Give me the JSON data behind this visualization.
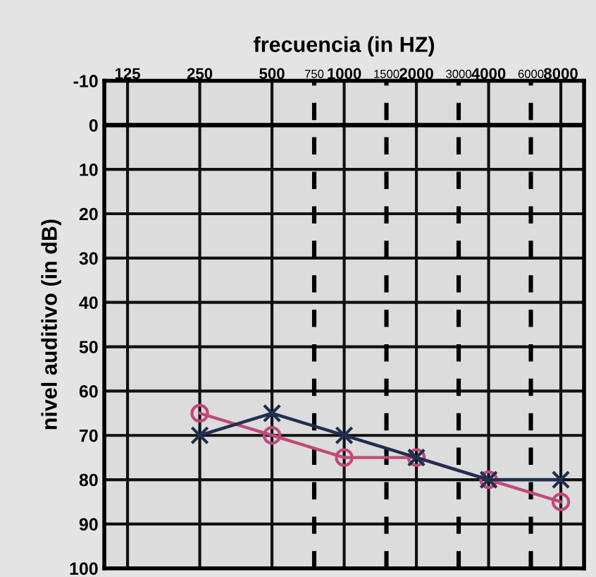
{
  "chart_data": {
    "type": "line",
    "xlabel": "frecuencia (in HZ)",
    "ylabel": "nivel auditivo (in dB)",
    "x": [
      250,
      500,
      1000,
      2000,
      4000,
      8000
    ],
    "series": [
      {
        "color": "#c04a7a",
        "marker": "circle",
        "values": [
          65,
          70,
          75,
          75,
          80,
          85
        ]
      },
      {
        "color": "#1f2f4f",
        "marker": "cross",
        "values": [
          70,
          65,
          70,
          75,
          80,
          80
        ]
      }
    ],
    "log": "x",
    "xlim": [
      100,
      10000
    ],
    "ylim": [
      100,
      -10
    ],
    "xticks": [
      125,
      250,
      500,
      750,
      1000,
      1500,
      2000,
      3000,
      4000,
      6000,
      8000
    ],
    "yticks": [
      -10,
      0,
      10,
      20,
      30,
      40,
      50,
      60,
      70,
      80,
      90,
      100
    ],
    "ref_lines": [
      {
        "axis": "y",
        "value": 0,
        "line_style": "solid",
        "color": "#000000"
      }
    ],
    "grid": true,
    "legend": false
  }
}
